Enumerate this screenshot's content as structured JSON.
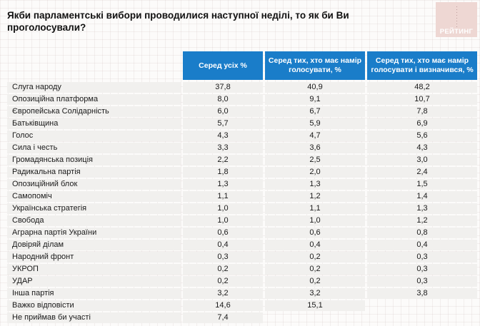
{
  "header": {
    "logo_text": "РЕЙТИНГ"
  },
  "colors": {
    "header_blue": "#1a7dc9",
    "row_gray": "#f1f0ee",
    "logo_pink": "#eed7d3"
  },
  "chart_data": {
    "type": "table",
    "title": "Якби парламентські вибори проводилися наступної неділі, то як би Ви проголосували?",
    "columns": [
      "Серед усіх %",
      "Серед тих, хто має намір голосувати, %",
      "Серед тих, хто має намір голосувати і визначився, %"
    ],
    "rows": [
      {
        "label": "Слуга народу",
        "values": [
          "37,8",
          "40,9",
          "48,2"
        ]
      },
      {
        "label": "Опозиційна платформа",
        "values": [
          "8,0",
          "9,1",
          "10,7"
        ]
      },
      {
        "label": "Європейська Солідарність",
        "values": [
          "6,0",
          "6,7",
          "7,8"
        ]
      },
      {
        "label": "Батьківщина",
        "values": [
          "5,7",
          "5,9",
          "6,9"
        ]
      },
      {
        "label": "Голос",
        "values": [
          "4,3",
          "4,7",
          "5,6"
        ]
      },
      {
        "label": "Сила і честь",
        "values": [
          "3,3",
          "3,6",
          "4,3"
        ]
      },
      {
        "label": "Громадянська позиція",
        "values": [
          "2,2",
          "2,5",
          "3,0"
        ]
      },
      {
        "label": "Радикальна партія",
        "values": [
          "1,8",
          "2,0",
          "2,4"
        ]
      },
      {
        "label": "Опозиційний блок",
        "values": [
          "1,3",
          "1,3",
          "1,5"
        ]
      },
      {
        "label": "Самопоміч",
        "values": [
          "1,1",
          "1,2",
          "1,4"
        ]
      },
      {
        "label": "Українська стратегія",
        "values": [
          "1,0",
          "1,1",
          "1,3"
        ]
      },
      {
        "label": "Свобода",
        "values": [
          "1,0",
          "1,0",
          "1,2"
        ]
      },
      {
        "label": "Аграрна партія України",
        "values": [
          "0,6",
          "0,6",
          "0,8"
        ]
      },
      {
        "label": "Довіряй ділам",
        "values": [
          "0,4",
          "0,4",
          "0,4"
        ]
      },
      {
        "label": "Народний фронт",
        "values": [
          "0,3",
          "0,2",
          "0,3"
        ]
      },
      {
        "label": "УКРОП",
        "values": [
          "0,2",
          "0,2",
          "0,3"
        ]
      },
      {
        "label": "УДАР",
        "values": [
          "0,2",
          "0,2",
          "0,3"
        ]
      },
      {
        "label": "Інша партія",
        "values": [
          "3,2",
          "3,2",
          "3,8"
        ]
      },
      {
        "label": "Важко відповісти",
        "values": [
          "14,6",
          "15,1",
          null
        ]
      },
      {
        "label": "Не приймав би участі",
        "values": [
          "7,4",
          null,
          null
        ]
      }
    ]
  }
}
